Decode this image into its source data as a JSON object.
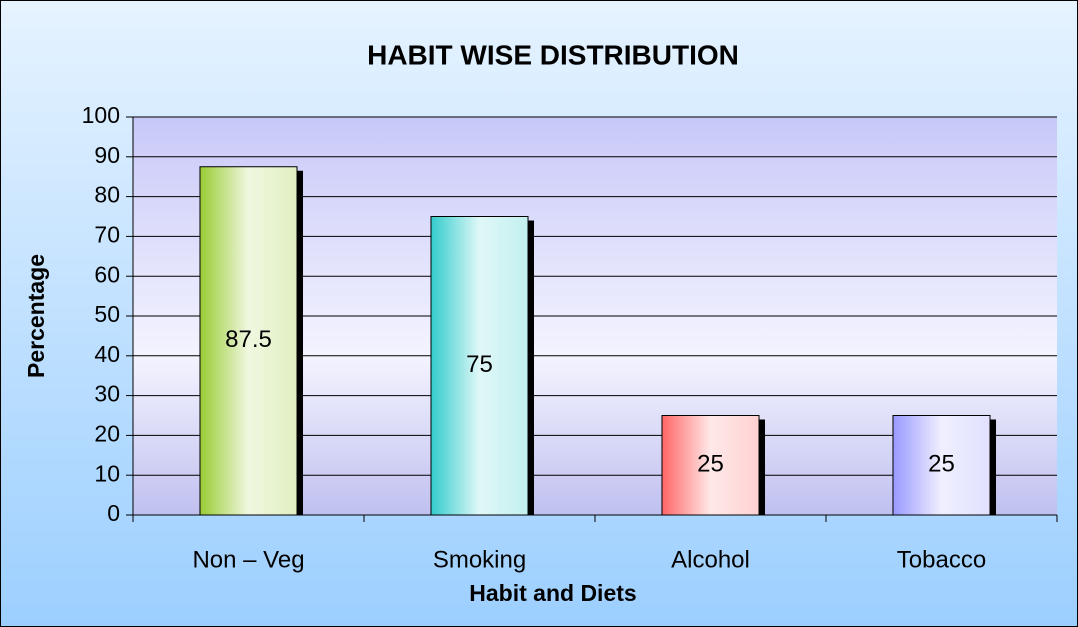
{
  "chart_data": {
    "type": "bar",
    "title": "HABIT WISE DISTRIBUTION",
    "x_label": "Habit and Diets",
    "y_label": "Percentage",
    "categories": [
      "Non – Veg",
      "Smoking",
      "Alcohol",
      "Tobacco"
    ],
    "values": [
      87.5,
      75,
      25,
      25
    ],
    "colors": [
      "#99cc33",
      "#33cccc",
      "#ff6666",
      "#9999ff"
    ],
    "ylim": [
      0,
      100
    ],
    "yticks": [
      0,
      10,
      20,
      30,
      40,
      50,
      60,
      70,
      80,
      90,
      100
    ],
    "grid": true
  }
}
